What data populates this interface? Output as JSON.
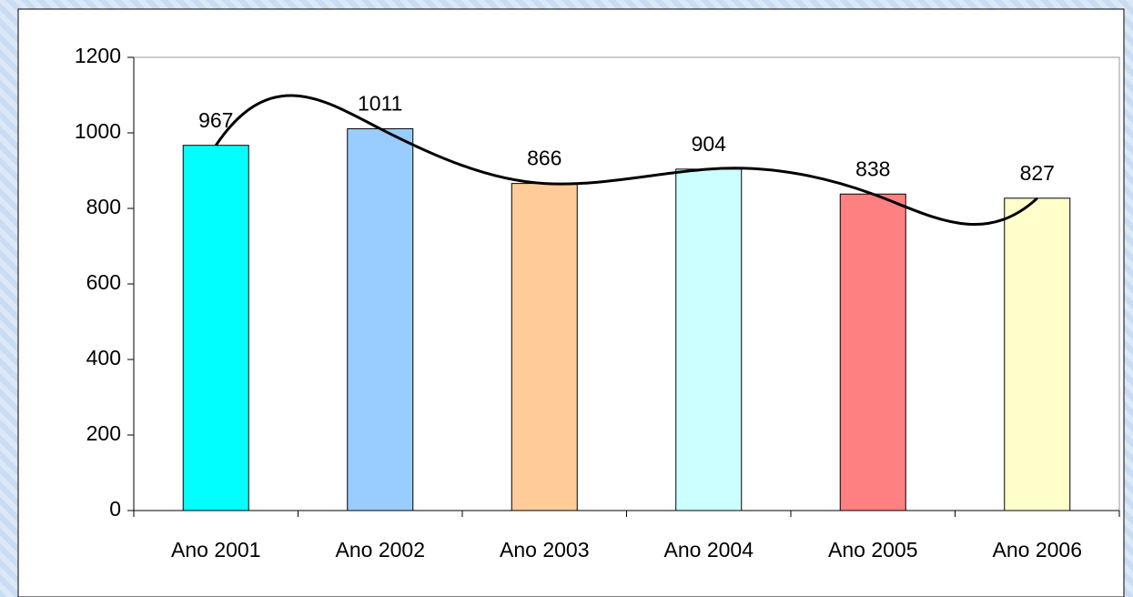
{
  "chart_data": {
    "type": "bar",
    "categories": [
      "Ano 2001",
      "Ano 2002",
      "Ano 2003",
      "Ano 2004",
      "Ano 2005",
      "Ano 2006"
    ],
    "values": [
      967,
      1011,
      866,
      904,
      838,
      827
    ],
    "colors": [
      "#00FFFF",
      "#99CCFF",
      "#FFCC99",
      "#CCFFFF",
      "#FF8080",
      "#FFFFCC"
    ],
    "ylim": [
      0,
      1200
    ],
    "yticks": [
      0,
      200,
      400,
      600,
      800,
      1000,
      1200
    ],
    "trendline": true,
    "trendline_color": "#000000",
    "value_labels_shown": true
  }
}
